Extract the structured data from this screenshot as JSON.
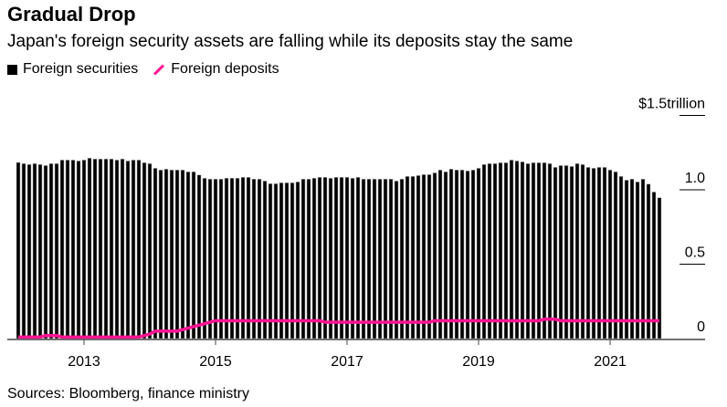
{
  "title": "Gradual Drop",
  "subtitle": "Japan's foreign security assets are falling while its deposits stay the same",
  "source": "Sources: Bloomberg, finance ministry",
  "colors": {
    "securities": "#000000",
    "deposits": "#ff1493"
  },
  "chart_data": {
    "type": "bar",
    "title": "Gradual Drop",
    "legend": "top-left",
    "x_start": "2012-01",
    "x_end": "2021-10",
    "frequency": "monthly",
    "xticks": [
      "2013",
      "2015",
      "2017",
      "2019",
      "2021"
    ],
    "ylim": [
      0,
      1.5
    ],
    "yticks": [
      {
        "value": 1.5,
        "label": "$1.5trillion"
      },
      {
        "value": 1.0,
        "label": "1.0"
      },
      {
        "value": 0.5,
        "label": "0.5"
      },
      {
        "value": 0,
        "label": "0"
      }
    ],
    "series": [
      {
        "name": "Foreign securities",
        "type": "bar",
        "values": [
          1.184,
          1.176,
          1.17,
          1.176,
          1.17,
          1.163,
          1.176,
          1.176,
          1.2,
          1.2,
          1.2,
          1.194,
          1.2,
          1.213,
          1.207,
          1.207,
          1.207,
          1.207,
          1.2,
          1.207,
          1.194,
          1.2,
          1.2,
          1.182,
          1.176,
          1.145,
          1.133,
          1.139,
          1.133,
          1.133,
          1.133,
          1.121,
          1.121,
          1.1,
          1.078,
          1.072,
          1.072,
          1.072,
          1.078,
          1.078,
          1.078,
          1.084,
          1.084,
          1.072,
          1.072,
          1.059,
          1.041,
          1.041,
          1.047,
          1.047,
          1.047,
          1.053,
          1.072,
          1.072,
          1.078,
          1.084,
          1.084,
          1.078,
          1.084,
          1.084,
          1.084,
          1.078,
          1.084,
          1.072,
          1.072,
          1.072,
          1.072,
          1.072,
          1.072,
          1.059,
          1.072,
          1.09,
          1.09,
          1.096,
          1.102,
          1.102,
          1.114,
          1.133,
          1.121,
          1.139,
          1.133,
          1.133,
          1.127,
          1.133,
          1.145,
          1.17,
          1.176,
          1.176,
          1.182,
          1.182,
          1.2,
          1.194,
          1.188,
          1.176,
          1.182,
          1.182,
          1.182,
          1.176,
          1.151,
          1.163,
          1.163,
          1.157,
          1.176,
          1.17,
          1.151,
          1.145,
          1.151,
          1.151,
          1.133,
          1.121,
          1.09,
          1.065,
          1.072,
          1.053,
          1.072,
          1.039,
          0.985,
          0.947
        ]
      },
      {
        "name": "Foreign deposits",
        "type": "line",
        "values": [
          0.01,
          0.01,
          0.01,
          0.01,
          0.01,
          0.02,
          0.02,
          0.02,
          0.01,
          0.01,
          0.01,
          0.01,
          0.01,
          0.01,
          0.01,
          0.01,
          0.01,
          0.01,
          0.01,
          0.01,
          0.01,
          0.01,
          0.01,
          0.02,
          0.03,
          0.05,
          0.05,
          0.05,
          0.05,
          0.05,
          0.06,
          0.07,
          0.08,
          0.09,
          0.1,
          0.11,
          0.12,
          0.12,
          0.12,
          0.12,
          0.12,
          0.12,
          0.12,
          0.12,
          0.12,
          0.12,
          0.12,
          0.12,
          0.12,
          0.12,
          0.12,
          0.12,
          0.12,
          0.12,
          0.12,
          0.12,
          0.11,
          0.11,
          0.11,
          0.11,
          0.11,
          0.11,
          0.11,
          0.11,
          0.11,
          0.11,
          0.11,
          0.11,
          0.11,
          0.11,
          0.11,
          0.11,
          0.11,
          0.11,
          0.11,
          0.11,
          0.12,
          0.12,
          0.12,
          0.12,
          0.12,
          0.12,
          0.12,
          0.12,
          0.12,
          0.12,
          0.12,
          0.12,
          0.12,
          0.12,
          0.12,
          0.12,
          0.12,
          0.12,
          0.12,
          0.12,
          0.13,
          0.13,
          0.13,
          0.12,
          0.12,
          0.12,
          0.12,
          0.12,
          0.12,
          0.12,
          0.12,
          0.12,
          0.12,
          0.12,
          0.12,
          0.12,
          0.12,
          0.12,
          0.12,
          0.12,
          0.12,
          0.12
        ]
      }
    ]
  }
}
